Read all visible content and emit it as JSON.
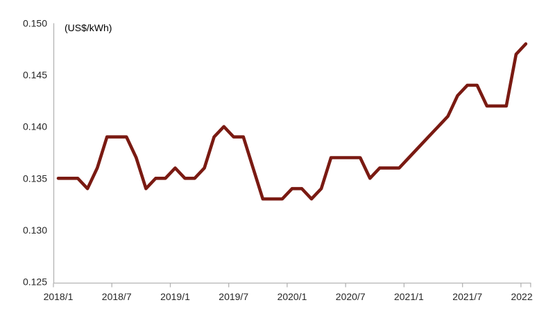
{
  "figure": {
    "unit_label": "(US$/kWh)"
  },
  "chart_data": {
    "type": "line",
    "title": "",
    "ylabel": "(US$/kWh)",
    "series_name": "electricity-price",
    "x": [
      "2018/1",
      "2018/2",
      "2018/3",
      "2018/4",
      "2018/5",
      "2018/6",
      "2018/7",
      "2018/8",
      "2018/9",
      "2018/10",
      "2018/11",
      "2018/12",
      "2019/1",
      "2019/2",
      "2019/3",
      "2019/4",
      "2019/5",
      "2019/6",
      "2019/7",
      "2019/8",
      "2019/9",
      "2019/10",
      "2019/11",
      "2019/12",
      "2020/1",
      "2020/2",
      "2020/3",
      "2020/4",
      "2020/5",
      "2020/6",
      "2020/7",
      "2020/8",
      "2020/9",
      "2020/10",
      "2020/11",
      "2020/12",
      "2021/1",
      "2021/2",
      "2021/3",
      "2021/4",
      "2021/5",
      "2021/6",
      "2021/7",
      "2021/8",
      "2021/9",
      "2021/10",
      "2021/11",
      "2021/12",
      "2022/1"
    ],
    "values": [
      0.135,
      0.135,
      0.135,
      0.134,
      0.136,
      0.139,
      0.139,
      0.139,
      0.137,
      0.134,
      0.135,
      0.135,
      0.136,
      0.135,
      0.135,
      0.136,
      0.139,
      0.14,
      0.139,
      0.139,
      0.136,
      0.133,
      0.133,
      0.133,
      0.134,
      0.134,
      0.133,
      0.134,
      0.137,
      0.137,
      0.137,
      0.137,
      0.135,
      0.136,
      0.136,
      0.136,
      0.137,
      0.138,
      0.139,
      0.14,
      0.141,
      0.143,
      0.144,
      0.144,
      0.142,
      0.142,
      0.142,
      0.147,
      0.148
    ],
    "ylim": [
      0.125,
      0.15
    ],
    "y_tick_step": 0.005,
    "y_tick_labels": [
      "0.150",
      "0.145",
      "0.140",
      "0.135",
      "0.130",
      "0.125"
    ],
    "x_tick_labels": [
      "2018/1",
      "2018/7",
      "2019/1",
      "2019/7",
      "2020/1",
      "2020/7",
      "2021/1",
      "2021/7",
      "2022/1"
    ],
    "x_tick_every": 6,
    "grid": false,
    "legend": "none",
    "line_color": "#7A1A12",
    "axis_color": "#B3B3B3",
    "text_color": "#262626"
  }
}
